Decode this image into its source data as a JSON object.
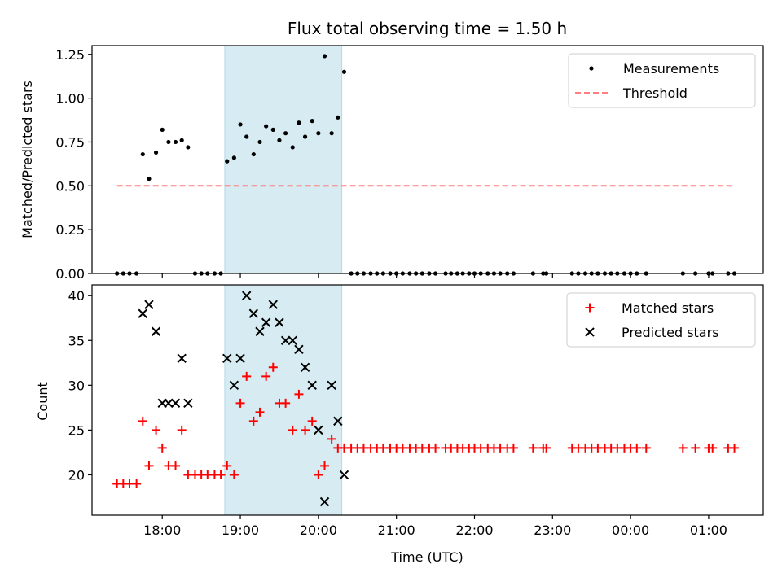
{
  "chart_data": [
    {
      "type": "scatter",
      "title": "Flux total observing time = 1.50 h",
      "xlabel": "",
      "ylabel": "Matched/Predicted stars",
      "ylim": [
        0,
        1.3
      ],
      "yticks": [
        "0.00",
        "0.25",
        "0.50",
        "0.75",
        "1.00",
        "1.25"
      ],
      "ytick_values": [
        0,
        0.25,
        0.5,
        0.75,
        1.0,
        1.25
      ],
      "x_unit": "hours since 00:00 UTC of observing night (values past 24 are next day)",
      "xlim": [
        17.1,
        25.7
      ],
      "highlight_span": [
        18.8,
        20.3
      ],
      "legend_position": "top-right",
      "series": [
        {
          "name": "Measurements",
          "marker": "dot",
          "color": "#000000",
          "x": [
            17.42,
            17.5,
            17.58,
            17.67,
            17.75,
            17.83,
            17.92,
            18.0,
            18.08,
            18.17,
            18.25,
            18.33,
            18.42,
            18.5,
            18.58,
            18.67,
            18.75,
            18.83,
            18.92,
            19.0,
            19.08,
            19.17,
            19.25,
            19.33,
            19.42,
            19.5,
            19.58,
            19.67,
            19.75,
            19.83,
            19.92,
            20.0,
            20.08,
            20.17,
            20.25,
            20.33,
            20.42,
            20.5,
            20.58,
            20.67,
            20.75,
            20.83,
            20.92,
            21.0,
            21.08,
            21.17,
            21.25,
            21.33,
            21.42,
            21.5,
            21.63,
            21.7,
            21.78,
            21.85,
            21.93,
            22.0,
            22.08,
            22.17,
            22.25,
            22.33,
            22.42,
            22.5,
            22.75,
            22.88,
            22.92,
            23.25,
            23.33,
            23.42,
            23.5,
            23.58,
            23.67,
            23.75,
            23.83,
            23.92,
            24.0,
            24.08,
            24.2,
            24.67,
            24.83,
            25.0,
            25.05,
            25.25,
            25.33
          ],
          "y": [
            0,
            0,
            0,
            0,
            0.68,
            0.54,
            0.69,
            0.82,
            0.75,
            0.75,
            0.76,
            0.72,
            0,
            0,
            0,
            0,
            0,
            0.64,
            0.66,
            0.85,
            0.78,
            0.68,
            0.75,
            0.84,
            0.82,
            0.76,
            0.8,
            0.72,
            0.86,
            0.78,
            0.87,
            0.8,
            1.24,
            0.8,
            0.89,
            1.15,
            0,
            0,
            0,
            0,
            0,
            0,
            0,
            0,
            0,
            0,
            0,
            0,
            0,
            0,
            0,
            0,
            0,
            0,
            0,
            0,
            0,
            0,
            0,
            0,
            0,
            0,
            0,
            0,
            0,
            0,
            0,
            0,
            0,
            0,
            0,
            0,
            0,
            0,
            0,
            0,
            0,
            0,
            0,
            0,
            0,
            0,
            0
          ]
        },
        {
          "name": "Threshold",
          "marker": "dashed-line",
          "color": "#ff8080",
          "x": [
            17.42,
            25.33
          ],
          "y": [
            0.5,
            0.5
          ]
        }
      ]
    },
    {
      "type": "scatter",
      "title": "",
      "xlabel": "Time (UTC)",
      "ylabel": "Count",
      "ylim": [
        15.5,
        41.2
      ],
      "yticks": [
        "20",
        "25",
        "30",
        "35",
        "40"
      ],
      "ytick_values": [
        20,
        25,
        30,
        35,
        40
      ],
      "xticks": [
        "18:00",
        "19:00",
        "20:00",
        "21:00",
        "22:00",
        "23:00",
        "00:00",
        "01:00"
      ],
      "xtick_values": [
        18,
        19,
        20,
        21,
        22,
        23,
        24,
        25
      ],
      "x_unit": "hours since 00:00 UTC of observing night (values past 24 are next day)",
      "xlim": [
        17.1,
        25.7
      ],
      "highlight_span": [
        18.8,
        20.3
      ],
      "legend_position": "top-right",
      "series": [
        {
          "name": "Matched stars",
          "marker": "plus",
          "color": "#ff0000",
          "x": [
            17.42,
            17.5,
            17.58,
            17.67,
            17.75,
            17.83,
            17.92,
            18.0,
            18.08,
            18.17,
            18.25,
            18.33,
            18.42,
            18.5,
            18.58,
            18.67,
            18.75,
            18.83,
            18.92,
            19.0,
            19.08,
            19.17,
            19.25,
            19.33,
            19.42,
            19.5,
            19.58,
            19.67,
            19.75,
            19.83,
            19.92,
            20.0,
            20.08,
            20.17,
            20.25,
            20.33,
            20.42,
            20.5,
            20.58,
            20.67,
            20.75,
            20.83,
            20.92,
            21.0,
            21.08,
            21.17,
            21.25,
            21.33,
            21.42,
            21.5,
            21.63,
            21.7,
            21.78,
            21.85,
            21.93,
            22.0,
            22.08,
            22.17,
            22.25,
            22.33,
            22.42,
            22.5,
            22.75,
            22.88,
            22.92,
            23.25,
            23.33,
            23.42,
            23.5,
            23.58,
            23.67,
            23.75,
            23.83,
            23.92,
            24.0,
            24.08,
            24.2,
            24.67,
            24.83,
            25.0,
            25.05,
            25.25,
            25.33
          ],
          "y": [
            19,
            19,
            19,
            19,
            26,
            21,
            25,
            23,
            21,
            21,
            25,
            20,
            20,
            20,
            20,
            20,
            20,
            21,
            20,
            28,
            31,
            26,
            27,
            31,
            32,
            28,
            28,
            25,
            29,
            25,
            26,
            20,
            21,
            24,
            23,
            23,
            23,
            23,
            23,
            23,
            23,
            23,
            23,
            23,
            23,
            23,
            23,
            23,
            23,
            23,
            23,
            23,
            23,
            23,
            23,
            23,
            23,
            23,
            23,
            23,
            23,
            23,
            23,
            23,
            23,
            23,
            23,
            23,
            23,
            23,
            23,
            23,
            23,
            23,
            23,
            23,
            23,
            23,
            23,
            23,
            23,
            23,
            23
          ]
        },
        {
          "name": "Predicted stars",
          "marker": "x",
          "color": "#000000",
          "x": [
            17.75,
            17.83,
            17.92,
            18.0,
            18.08,
            18.17,
            18.25,
            18.33,
            18.83,
            18.92,
            19.0,
            19.08,
            19.17,
            19.25,
            19.33,
            19.42,
            19.5,
            19.58,
            19.67,
            19.75,
            19.83,
            19.92,
            20.0,
            20.08,
            20.17,
            20.25,
            20.33
          ],
          "y": [
            38,
            39,
            36,
            28,
            28,
            28,
            33,
            28,
            33,
            30,
            33,
            40,
            38,
            36,
            37,
            39,
            37,
            35,
            35,
            34,
            32,
            30,
            25,
            17,
            30,
            26,
            20
          ]
        }
      ]
    }
  ]
}
